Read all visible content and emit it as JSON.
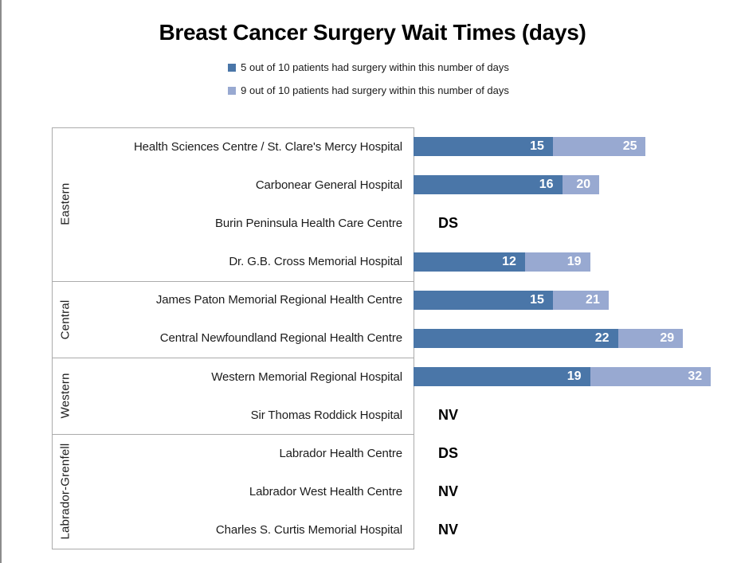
{
  "title": "Breast Cancer Surgery Wait Times (days)",
  "legend": {
    "items": [
      {
        "label": "5 out of 10 patients had surgery within this number of days",
        "color": "#4a76a8"
      },
      {
        "label": "9 out of 10 patients had surgery within this number of days",
        "color": "#98a9d1"
      }
    ]
  },
  "chart_data": {
    "type": "bar",
    "orientation": "horizontal",
    "title": "Breast Cancer Surgery Wait Times (days)",
    "unit": "days",
    "x_axis": {
      "min": 0,
      "max": 35,
      "ticks_visible": false,
      "grid": false
    },
    "legend_position": "top-center",
    "series": [
      {
        "name": "5 out of 10 patients had surgery within this number of days",
        "key": "p50",
        "color": "#4a76a8"
      },
      {
        "name": "9 out of 10 patients had surgery within this number of days",
        "key": "p90",
        "color": "#98a9d1"
      }
    ],
    "groups": [
      {
        "region": "Eastern",
        "hospitals": [
          {
            "name": "Health Sciences Centre / St. Clare's Mercy Hospital",
            "p50": 15,
            "p90": 25
          },
          {
            "name": "Carbonear General Hospital",
            "p50": 16,
            "p90": 20
          },
          {
            "name": "Burin Peninsula Health Care Centre",
            "note": "DS"
          },
          {
            "name": "Dr. G.B. Cross Memorial Hospital",
            "p50": 12,
            "p90": 19
          }
        ]
      },
      {
        "region": "Central",
        "hospitals": [
          {
            "name": "James Paton Memorial Regional Health Centre",
            "p50": 15,
            "p90": 21
          },
          {
            "name": "Central Newfoundland Regional Health Centre",
            "p50": 22,
            "p90": 29
          }
        ]
      },
      {
        "region": "Western",
        "hospitals": [
          {
            "name": "Western Memorial Regional Hospital",
            "p50": 19,
            "p90": 32
          },
          {
            "name": "Sir Thomas Roddick Hospital",
            "note": "NV"
          }
        ]
      },
      {
        "region": "Labrador-Grenfell",
        "hospitals": [
          {
            "name": "Labrador Health Centre",
            "note": "DS"
          },
          {
            "name": "Labrador West Health Centre",
            "note": "NV"
          },
          {
            "name": "Charles S. Curtis Memorial Hospital",
            "note": "NV"
          }
        ]
      }
    ]
  }
}
